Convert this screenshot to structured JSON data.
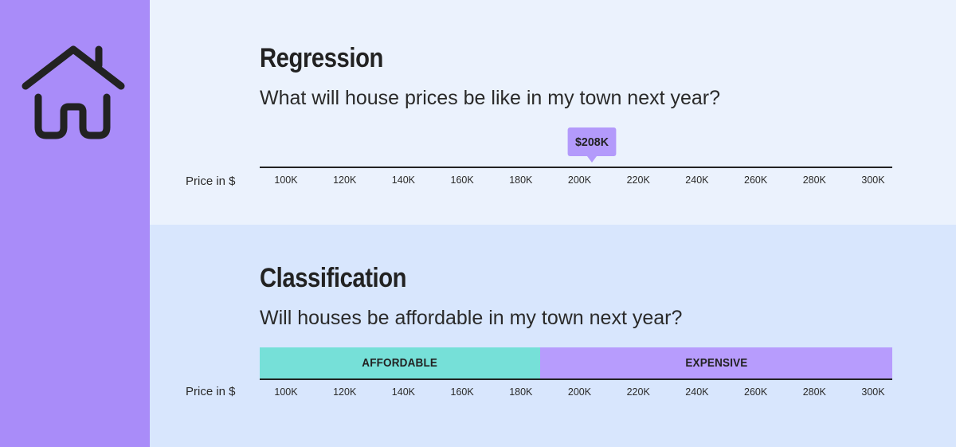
{
  "regression": {
    "title": "Regression",
    "question": "What will house prices be like in my town next year?",
    "axis_label": "Price in $",
    "prediction_label": "$208K",
    "prediction_value": 208000,
    "ticks": [
      "100K",
      "120K",
      "140K",
      "160K",
      "180K",
      "200K",
      "220K",
      "240K",
      "260K",
      "280K",
      "300K"
    ]
  },
  "classification": {
    "title": "Classification",
    "question": "Will houses be affordable in my town next year?",
    "axis_label": "Price in $",
    "ticks": [
      "100K",
      "120K",
      "140K",
      "160K",
      "180K",
      "200K",
      "220K",
      "240K",
      "260K",
      "280K",
      "300K"
    ],
    "classes": [
      {
        "label": "AFFORDABLE",
        "range": [
          90000,
          190000
        ],
        "color": "#76e0d8"
      },
      {
        "label": "EXPENSIVE",
        "range": [
          190000,
          310000
        ],
        "color": "#b79cfd"
      }
    ]
  },
  "colors": {
    "sidebar": "#a98cf9",
    "top_panel": "#ebf2fd",
    "bottom_panel": "#d8e6fd",
    "icon": "#222222"
  },
  "icon": "house-icon"
}
